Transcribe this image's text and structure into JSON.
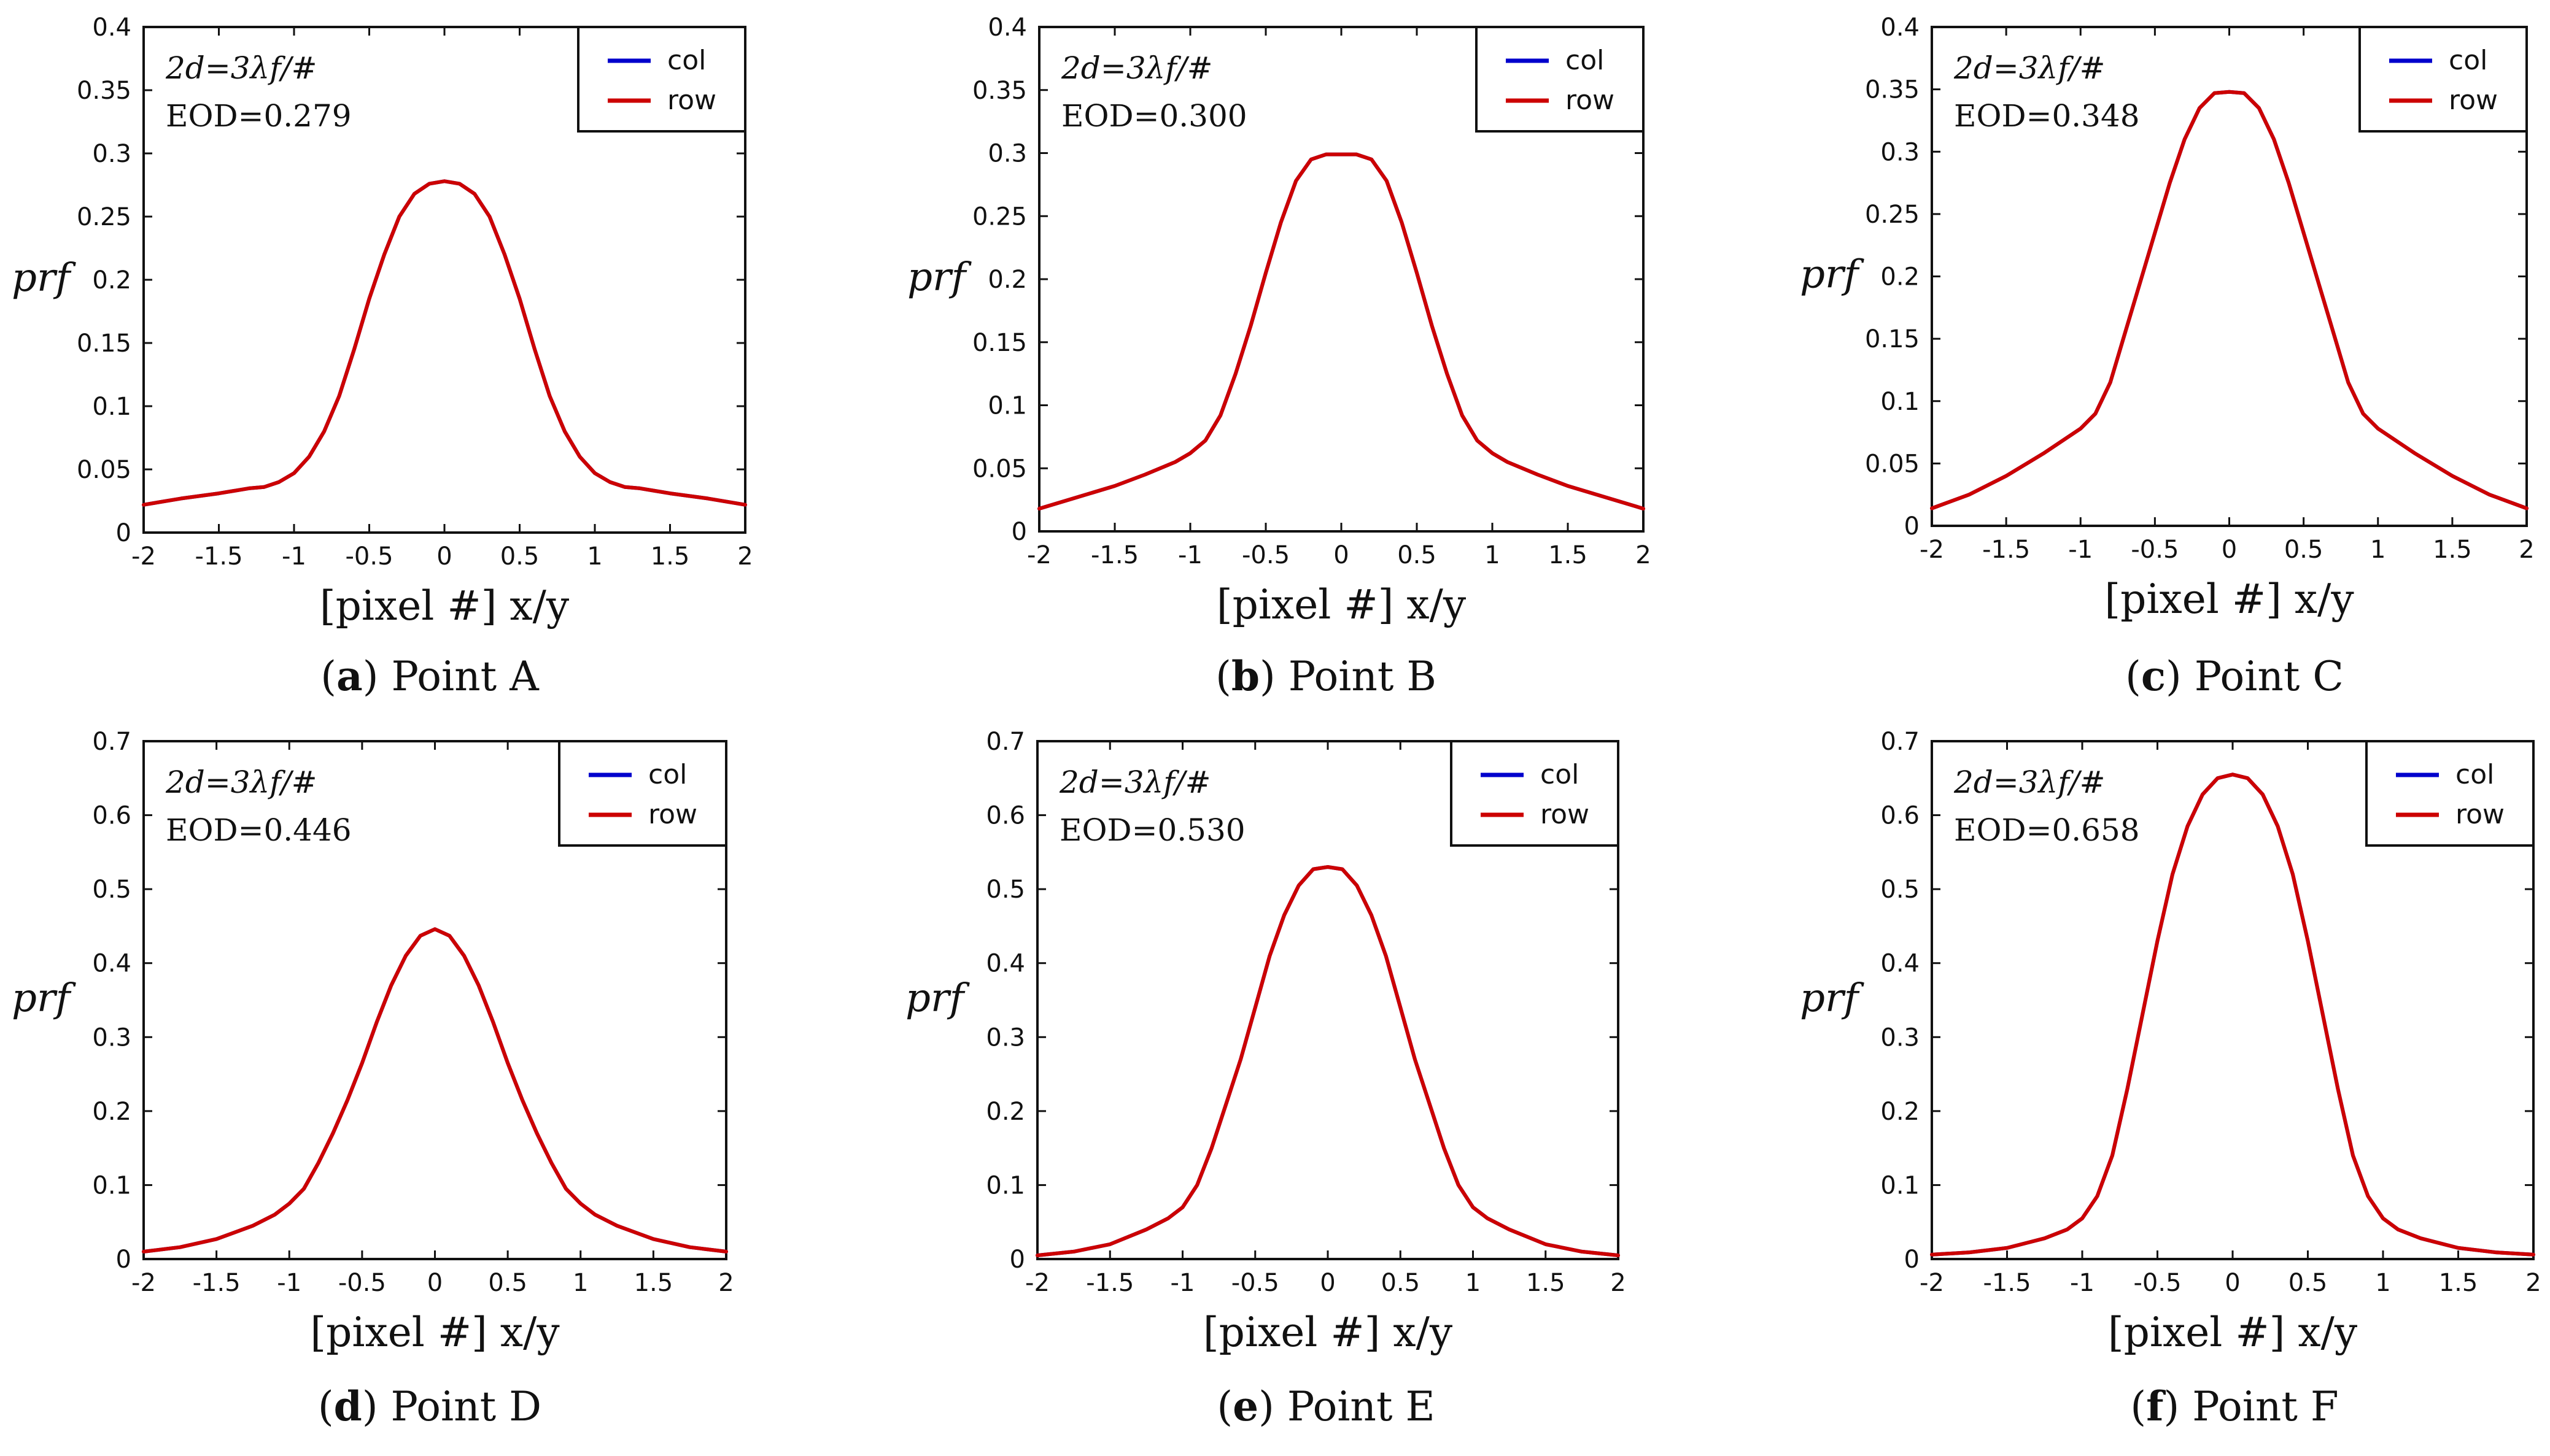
{
  "figure": {
    "colors": {
      "col": "#0000cc",
      "row": "#cc0000",
      "axis": "#111111"
    }
  },
  "chart_data": [
    {
      "type": "line",
      "caption_letter": "a",
      "caption_text": "Point A",
      "annotation_line1": "2d=3λf/#",
      "annotation_line2": "EOD=0.279",
      "xlabel": "[pixel #] x/y",
      "ylabel": "prf",
      "xlim": [
        -2,
        2
      ],
      "ylim": [
        0,
        0.4
      ],
      "xticks": [
        "-2",
        "-1.5",
        "-1",
        "-0.5",
        "0",
        "0.5",
        "1",
        "1.5",
        "2"
      ],
      "yticks": [
        "0",
        "0.05",
        "0.1",
        "0.15",
        "0.2",
        "0.25",
        "0.3",
        "0.35",
        "0.4"
      ],
      "legend": [
        "col",
        "row"
      ],
      "legend_position": "top-right",
      "grid": false,
      "x": [
        -2,
        -1.75,
        -1.5,
        -1.4,
        -1.3,
        -1.2,
        -1.1,
        -1,
        -0.9,
        -0.8,
        -0.7,
        -0.6,
        -0.5,
        -0.4,
        -0.3,
        -0.2,
        -0.1,
        0,
        0.1,
        0.2,
        0.3,
        0.4,
        0.5,
        0.6,
        0.7,
        0.8,
        0.9,
        1,
        1.1,
        1.2,
        1.3,
        1.4,
        1.5,
        1.75,
        2
      ],
      "series": [
        {
          "name": "col",
          "y": [
            0.022,
            0.027,
            0.031,
            0.033,
            0.035,
            0.036,
            0.04,
            0.047,
            0.06,
            0.08,
            0.108,
            0.145,
            0.185,
            0.22,
            0.25,
            0.268,
            0.276,
            0.278,
            0.276,
            0.268,
            0.25,
            0.22,
            0.185,
            0.145,
            0.108,
            0.08,
            0.06,
            0.047,
            0.04,
            0.036,
            0.035,
            0.033,
            0.031,
            0.027,
            0.022
          ]
        },
        {
          "name": "row",
          "y": [
            0.022,
            0.027,
            0.031,
            0.033,
            0.035,
            0.036,
            0.04,
            0.047,
            0.06,
            0.08,
            0.108,
            0.145,
            0.185,
            0.22,
            0.25,
            0.268,
            0.276,
            0.278,
            0.276,
            0.268,
            0.25,
            0.22,
            0.185,
            0.145,
            0.108,
            0.08,
            0.06,
            0.047,
            0.04,
            0.036,
            0.035,
            0.033,
            0.031,
            0.027,
            0.022
          ]
        }
      ]
    },
    {
      "type": "line",
      "caption_letter": "b",
      "caption_text": "Point B",
      "annotation_line1": "2d=3λf/#",
      "annotation_line2": "EOD=0.300",
      "xlabel": "[pixel #] x/y",
      "ylabel": "prf",
      "xlim": [
        -2,
        2
      ],
      "ylim": [
        0,
        0.4
      ],
      "xticks": [
        "-2",
        "-1.5",
        "-1",
        "-0.5",
        "0",
        "0.5",
        "1",
        "1.5",
        "2"
      ],
      "yticks": [
        "0",
        "0.05",
        "0.1",
        "0.15",
        "0.2",
        "0.25",
        "0.3",
        "0.35",
        "0.4"
      ],
      "legend": [
        "col",
        "row"
      ],
      "legend_position": "top-right",
      "grid": false,
      "x": [
        -2,
        -1.75,
        -1.5,
        -1.3,
        -1.1,
        -1,
        -0.9,
        -0.8,
        -0.7,
        -0.6,
        -0.5,
        -0.4,
        -0.3,
        -0.2,
        -0.1,
        0,
        0.1,
        0.2,
        0.3,
        0.4,
        0.5,
        0.6,
        0.7,
        0.8,
        0.9,
        1,
        1.1,
        1.3,
        1.5,
        1.75,
        2
      ],
      "series": [
        {
          "name": "col",
          "y": [
            0.018,
            0.027,
            0.036,
            0.045,
            0.055,
            0.062,
            0.072,
            0.092,
            0.125,
            0.163,
            0.205,
            0.245,
            0.278,
            0.295,
            0.299,
            0.299,
            0.299,
            0.295,
            0.278,
            0.245,
            0.205,
            0.163,
            0.125,
            0.092,
            0.072,
            0.062,
            0.055,
            0.045,
            0.036,
            0.027,
            0.018
          ]
        },
        {
          "name": "row",
          "y": [
            0.018,
            0.027,
            0.036,
            0.045,
            0.055,
            0.062,
            0.072,
            0.092,
            0.125,
            0.163,
            0.205,
            0.245,
            0.278,
            0.295,
            0.299,
            0.299,
            0.299,
            0.295,
            0.278,
            0.245,
            0.205,
            0.163,
            0.125,
            0.092,
            0.072,
            0.062,
            0.055,
            0.045,
            0.036,
            0.027,
            0.018
          ]
        }
      ]
    },
    {
      "type": "line",
      "caption_letter": "c",
      "caption_text": "Point C",
      "annotation_line1": "2d=3λf/#",
      "annotation_line2": "EOD=0.348",
      "xlabel": "[pixel #] x/y",
      "ylabel": "prf",
      "xlim": [
        -2,
        2
      ],
      "ylim": [
        0,
        0.4
      ],
      "xticks": [
        "-2",
        "-1.5",
        "-1",
        "-0.5",
        "0",
        "0.5",
        "1",
        "1.5",
        "2"
      ],
      "yticks": [
        "0",
        "0.05",
        "0.1",
        "0.15",
        "0.2",
        "0.25",
        "0.3",
        "0.35",
        "0.4"
      ],
      "legend": [
        "col",
        "row"
      ],
      "legend_position": "top-right",
      "grid": false,
      "x": [
        -2,
        -1.75,
        -1.5,
        -1.25,
        -1,
        -0.9,
        -0.8,
        -0.7,
        -0.6,
        -0.5,
        -0.4,
        -0.3,
        -0.2,
        -0.1,
        0,
        0.1,
        0.2,
        0.3,
        0.4,
        0.5,
        0.6,
        0.7,
        0.8,
        0.9,
        1,
        1.25,
        1.5,
        1.75,
        2
      ],
      "series": [
        {
          "name": "col",
          "y": [
            0.014,
            0.025,
            0.04,
            0.058,
            0.078,
            0.09,
            0.115,
            0.155,
            0.195,
            0.235,
            0.275,
            0.31,
            0.335,
            0.347,
            0.348,
            0.347,
            0.335,
            0.31,
            0.275,
            0.235,
            0.195,
            0.155,
            0.115,
            0.09,
            0.078,
            0.058,
            0.04,
            0.025,
            0.014
          ]
        },
        {
          "name": "row",
          "y": [
            0.014,
            0.025,
            0.04,
            0.058,
            0.078,
            0.09,
            0.115,
            0.155,
            0.195,
            0.235,
            0.275,
            0.31,
            0.335,
            0.347,
            0.348,
            0.347,
            0.335,
            0.31,
            0.275,
            0.235,
            0.195,
            0.155,
            0.115,
            0.09,
            0.078,
            0.058,
            0.04,
            0.025,
            0.014
          ]
        }
      ]
    },
    {
      "type": "line",
      "caption_letter": "d",
      "caption_text": "Point D",
      "annotation_line1": "2d=3λf/#",
      "annotation_line2": "EOD=0.446",
      "xlabel": "[pixel #] x/y",
      "ylabel": "prf",
      "xlim": [
        -2,
        2
      ],
      "ylim": [
        0,
        0.7
      ],
      "xticks": [
        "-2",
        "-1.5",
        "-1",
        "-0.5",
        "0",
        "0.5",
        "1",
        "1.5",
        "2"
      ],
      "yticks": [
        "0",
        "0.1",
        "0.2",
        "0.3",
        "0.4",
        "0.5",
        "0.6",
        "0.7"
      ],
      "legend": [
        "col",
        "row"
      ],
      "legend_position": "top-right",
      "grid": false,
      "x": [
        -2,
        -1.75,
        -1.5,
        -1.25,
        -1.1,
        -1,
        -0.9,
        -0.8,
        -0.7,
        -0.6,
        -0.5,
        -0.4,
        -0.3,
        -0.2,
        -0.1,
        0,
        0.1,
        0.2,
        0.3,
        0.4,
        0.5,
        0.6,
        0.7,
        0.8,
        0.9,
        1,
        1.1,
        1.25,
        1.5,
        1.75,
        2
      ],
      "series": [
        {
          "name": "col",
          "y": [
            0.01,
            0.016,
            0.027,
            0.045,
            0.06,
            0.075,
            0.095,
            0.13,
            0.17,
            0.215,
            0.265,
            0.32,
            0.37,
            0.41,
            0.437,
            0.446,
            0.437,
            0.41,
            0.37,
            0.32,
            0.265,
            0.215,
            0.17,
            0.13,
            0.095,
            0.075,
            0.06,
            0.045,
            0.027,
            0.016,
            0.01
          ]
        },
        {
          "name": "row",
          "y": [
            0.01,
            0.016,
            0.027,
            0.045,
            0.06,
            0.075,
            0.095,
            0.13,
            0.17,
            0.215,
            0.265,
            0.32,
            0.37,
            0.41,
            0.437,
            0.446,
            0.437,
            0.41,
            0.37,
            0.32,
            0.265,
            0.215,
            0.17,
            0.13,
            0.095,
            0.075,
            0.06,
            0.045,
            0.027,
            0.016,
            0.01
          ]
        }
      ]
    },
    {
      "type": "line",
      "caption_letter": "e",
      "caption_text": "Point E",
      "annotation_line1": "2d=3λf/#",
      "annotation_line2": "EOD=0.530",
      "xlabel": "[pixel #] x/y",
      "ylabel": "prf",
      "xlim": [
        -2,
        2
      ],
      "ylim": [
        0,
        0.7
      ],
      "xticks": [
        "-2",
        "-1.5",
        "-1",
        "-0.5",
        "0",
        "0.5",
        "1",
        "1.5",
        "2"
      ],
      "yticks": [
        "0",
        "0.1",
        "0.2",
        "0.3",
        "0.4",
        "0.5",
        "0.6",
        "0.7"
      ],
      "legend": [
        "col",
        "row"
      ],
      "legend_position": "top-right",
      "grid": false,
      "x": [
        -2,
        -1.75,
        -1.5,
        -1.25,
        -1.1,
        -1,
        -0.9,
        -0.8,
        -0.7,
        -0.6,
        -0.5,
        -0.4,
        -0.3,
        -0.2,
        -0.1,
        0,
        0.1,
        0.2,
        0.3,
        0.4,
        0.5,
        0.6,
        0.7,
        0.8,
        0.9,
        1,
        1.1,
        1.25,
        1.5,
        1.75,
        2
      ],
      "series": [
        {
          "name": "col",
          "y": [
            0.005,
            0.01,
            0.02,
            0.04,
            0.055,
            0.07,
            0.1,
            0.15,
            0.21,
            0.27,
            0.34,
            0.41,
            0.465,
            0.505,
            0.527,
            0.53,
            0.527,
            0.505,
            0.465,
            0.41,
            0.34,
            0.27,
            0.21,
            0.15,
            0.1,
            0.07,
            0.055,
            0.04,
            0.02,
            0.01,
            0.005
          ]
        },
        {
          "name": "row",
          "y": [
            0.005,
            0.01,
            0.02,
            0.04,
            0.055,
            0.07,
            0.1,
            0.15,
            0.21,
            0.27,
            0.34,
            0.41,
            0.465,
            0.505,
            0.527,
            0.53,
            0.527,
            0.505,
            0.465,
            0.41,
            0.34,
            0.27,
            0.21,
            0.15,
            0.1,
            0.07,
            0.055,
            0.04,
            0.02,
            0.01,
            0.005
          ]
        }
      ]
    },
    {
      "type": "line",
      "caption_letter": "f",
      "caption_text": "Point F",
      "annotation_line1": "2d=3λf/#",
      "annotation_line2": "EOD=0.658",
      "xlabel": "[pixel #] x/y",
      "ylabel": "prf",
      "xlim": [
        -2,
        2
      ],
      "ylim": [
        0,
        0.7
      ],
      "xticks": [
        "-2",
        "-1.5",
        "-1",
        "-0.5",
        "0",
        "0.5",
        "1",
        "1.5",
        "2"
      ],
      "yticks": [
        "0",
        "0.1",
        "0.2",
        "0.3",
        "0.4",
        "0.5",
        "0.6",
        "0.7"
      ],
      "legend": [
        "col",
        "row"
      ],
      "legend_position": "top-right",
      "grid": false,
      "x": [
        -2,
        -1.75,
        -1.5,
        -1.25,
        -1.1,
        -1,
        -0.9,
        -0.8,
        -0.7,
        -0.6,
        -0.5,
        -0.4,
        -0.3,
        -0.2,
        -0.1,
        0,
        0.1,
        0.2,
        0.3,
        0.4,
        0.5,
        0.6,
        0.7,
        0.8,
        0.9,
        1,
        1.1,
        1.25,
        1.5,
        1.75,
        2
      ],
      "series": [
        {
          "name": "col",
          "y": [
            0.006,
            0.009,
            0.015,
            0.028,
            0.04,
            0.055,
            0.085,
            0.14,
            0.23,
            0.33,
            0.43,
            0.52,
            0.585,
            0.628,
            0.65,
            0.655,
            0.65,
            0.628,
            0.585,
            0.52,
            0.43,
            0.33,
            0.23,
            0.14,
            0.085,
            0.055,
            0.04,
            0.028,
            0.015,
            0.009,
            0.006
          ]
        },
        {
          "name": "row",
          "y": [
            0.006,
            0.009,
            0.015,
            0.028,
            0.04,
            0.055,
            0.085,
            0.14,
            0.23,
            0.33,
            0.43,
            0.52,
            0.585,
            0.628,
            0.65,
            0.655,
            0.65,
            0.628,
            0.585,
            0.52,
            0.43,
            0.33,
            0.23,
            0.14,
            0.085,
            0.055,
            0.04,
            0.028,
            0.015,
            0.009,
            0.006
          ]
        }
      ]
    }
  ]
}
